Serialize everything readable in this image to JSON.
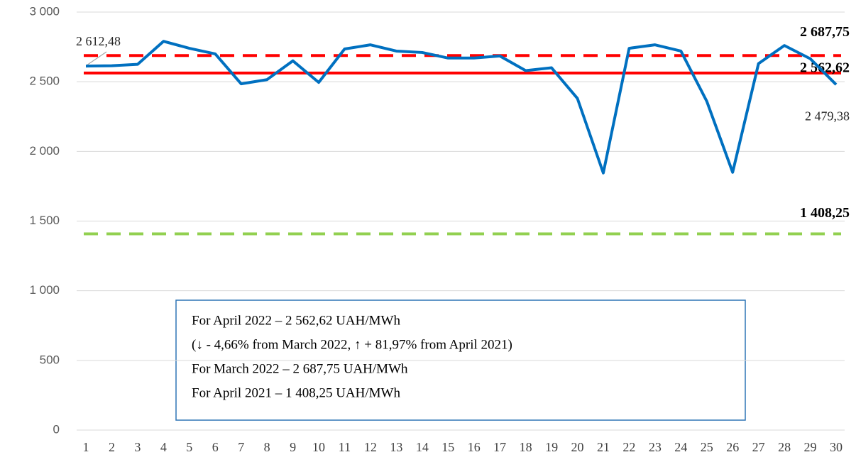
{
  "chart_data": {
    "type": "line",
    "categories": [
      "1",
      "2",
      "3",
      "4",
      "5",
      "6",
      "7",
      "8",
      "9",
      "10",
      "11",
      "12",
      "13",
      "14",
      "15",
      "16",
      "17",
      "18",
      "19",
      "20",
      "21",
      "22",
      "23",
      "24",
      "25",
      "26",
      "27",
      "28",
      "29",
      "30"
    ],
    "series": [
      {
        "color": "#0070c0",
        "values": [
          2612.48,
          2615,
          2625,
          2790,
          2740,
          2700,
          2485,
          2515,
          2650,
          2495,
          2735,
          2765,
          2720,
          2710,
          2670,
          2670,
          2685,
          2580,
          2600,
          2380,
          1845,
          2740,
          2765,
          2720,
          2360,
          1850,
          2630,
          2760,
          2665,
          2479.38
        ],
        "value_labels": [
          "2 612,48",
          null,
          null,
          null,
          null,
          null,
          null,
          null,
          null,
          null,
          null,
          null,
          null,
          null,
          null,
          null,
          null,
          null,
          null,
          null,
          null,
          null,
          null,
          null,
          null,
          null,
          null,
          null,
          null,
          "2 479,38"
        ]
      }
    ],
    "reference_lines": [
      {
        "value": 2687.75,
        "label": "2 687,75",
        "color": "#ff0000",
        "style": "dashed"
      },
      {
        "value": 2562.62,
        "label": "2 562,62",
        "color": "#ff0000",
        "style": "solid"
      },
      {
        "value": 1408.25,
        "label": "1 408,25",
        "color": "#92d050",
        "style": "dashed"
      }
    ],
    "annotation": [
      "For April 2022 – 2 562,62 UAH/MWh",
      "(↓ - 4,66% from  March  2022, ↑ + 81,97% from  April 2021)",
      "For March 2022 – 2 687,75 UAH/MWh",
      "For April 2021 – 1 408,25 UAH/MWh"
    ],
    "ylim": [
      0,
      3000
    ],
    "yticks": [
      0,
      500,
      {
        "value": 1000,
        "label": "1 000"
      },
      {
        "value": 1500,
        "label": "1 500"
      },
      {
        "value": 2000,
        "label": "2 000"
      },
      {
        "value": 2500,
        "label": "2 500"
      },
      {
        "value": 3000,
        "label": "3 000"
      }
    ],
    "grid": true
  }
}
